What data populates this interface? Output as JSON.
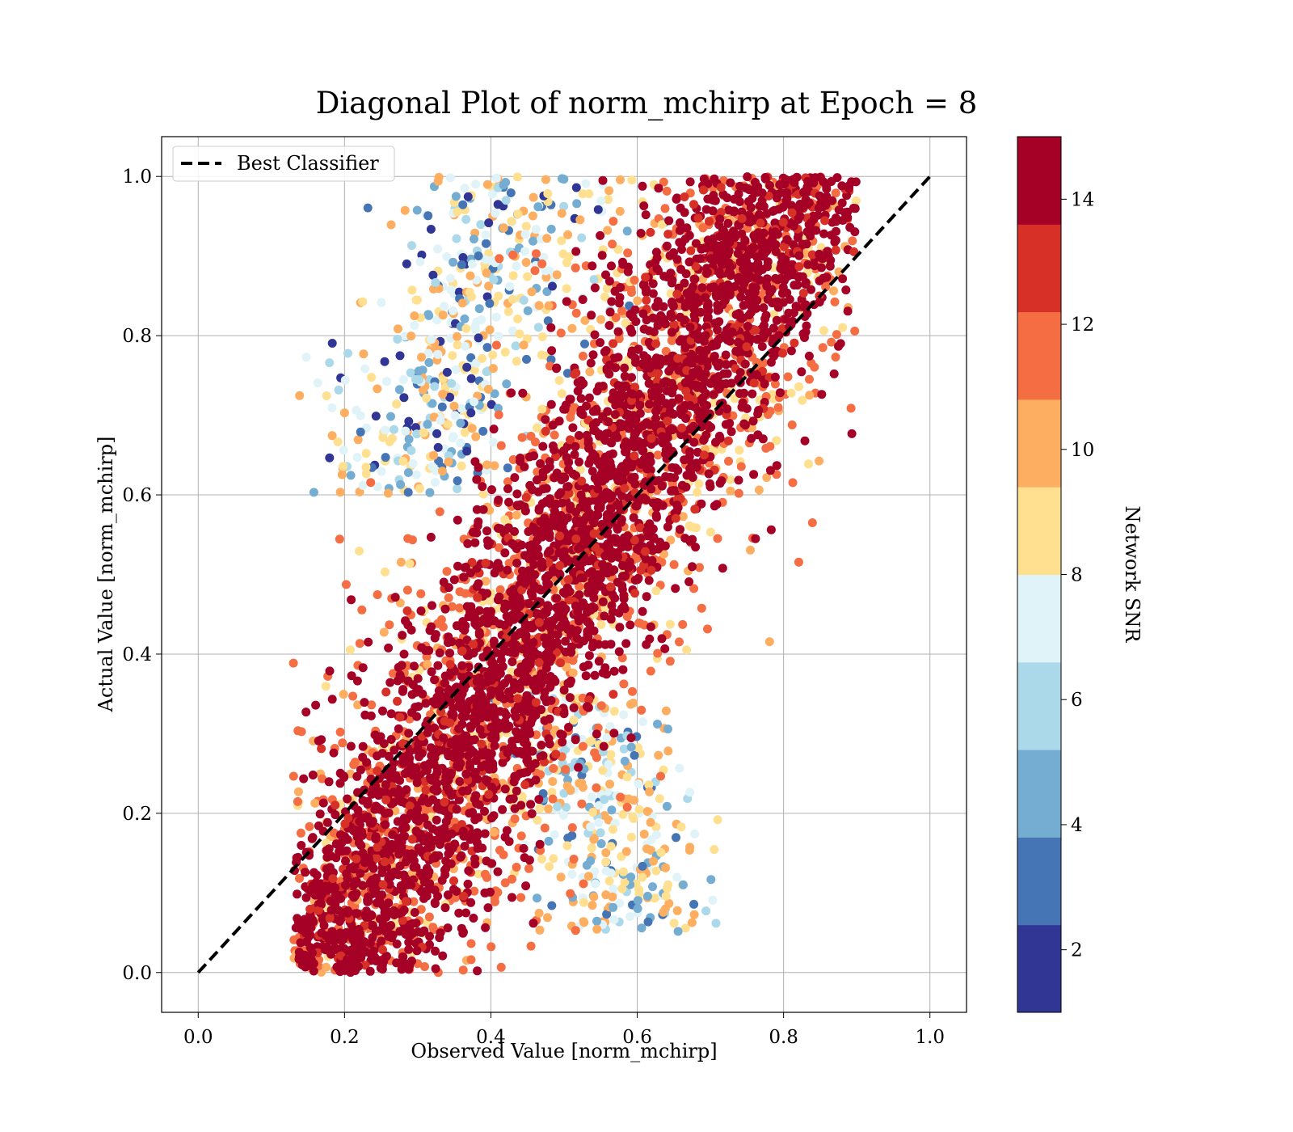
{
  "chart_data": {
    "type": "scatter",
    "title": "Diagonal Plot of norm_mchirp at Epoch = 8",
    "xlabel": "Observed Value [norm_mchirp]",
    "ylabel": "Actual Value [norm_mchirp]",
    "xlim": [
      -0.05,
      1.05
    ],
    "ylim": [
      -0.05,
      1.05
    ],
    "xticks": [
      "0.0",
      "0.2",
      "0.4",
      "0.6",
      "0.8",
      "1.0"
    ],
    "yticks": [
      "0.0",
      "0.2",
      "0.4",
      "0.6",
      "0.8",
      "1.0"
    ],
    "grid": true,
    "legend": {
      "position": "top-left",
      "entries": [
        "Best Classifier"
      ]
    },
    "reference_line": {
      "name": "Best Classifier",
      "style": "dashed",
      "color": "#000000",
      "x": [
        0,
        1
      ],
      "y": [
        0,
        1
      ]
    },
    "colorbar": {
      "label": "Network SNR",
      "range": [
        1,
        15
      ],
      "ticks": [
        "2",
        "4",
        "6",
        "8",
        "10",
        "12",
        "14"
      ],
      "colors": [
        "#313695",
        "#4575b4",
        "#74add1",
        "#abd9e9",
        "#e0f3f8",
        "#fee090",
        "#fdae61",
        "#f46d43",
        "#d73027",
        "#a50026"
      ]
    },
    "point_clouds": [
      {
        "snr": "high (>14)",
        "color": "#a50026",
        "region": "dense band along diagonal, observed 0.15-0.88, actual 0.0-1.0"
      },
      {
        "snr": "10-13",
        "color": "#f46d43",
        "region": "edges of main band"
      },
      {
        "snr": "7-10",
        "color": "#fee090",
        "region": "upper-left (obs 0.35-0.6, actual 0.7-1.0) and lower-right (obs 0.5-0.72, actual 0.05-0.3)"
      },
      {
        "snr": "1-6",
        "color": "#4575b4",
        "region": "far upper-left (obs 0.25-0.5, actual 0.6-1.0) and lower-right (obs 0.55-0.7, actual 0.08-0.2)"
      }
    ]
  }
}
